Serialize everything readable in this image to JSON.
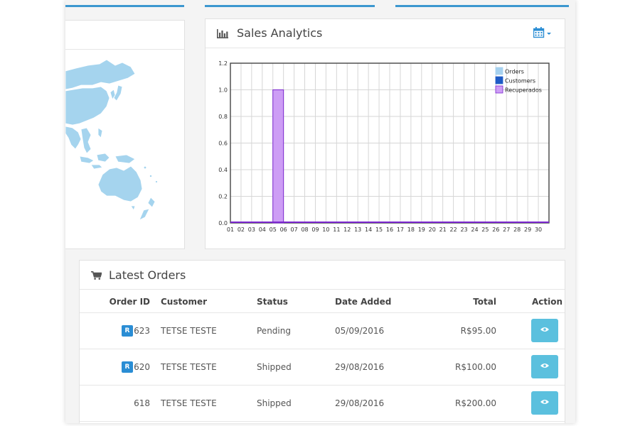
{
  "colors": {
    "accent": "#3c97cf",
    "map_land": "#a5d4ee",
    "bar_recuperados_fill": "#cd9df5",
    "bar_recuperados_stroke": "#7c27cf",
    "legend_orders": "#a6d1ef",
    "legend_customers": "#1e5bc6",
    "legend_recuperados": "#8a12f5",
    "badge": "#2a8dd4",
    "action_button": "#5bc0de"
  },
  "sales": {
    "title": "Sales Analytics",
    "icon": "bar-chart-icon",
    "date_picker_icon": "calendar-icon"
  },
  "chart_data": {
    "type": "bar",
    "categories": [
      "01",
      "02",
      "03",
      "04",
      "05",
      "06",
      "07",
      "08",
      "09",
      "10",
      "11",
      "12",
      "13",
      "14",
      "15",
      "16",
      "17",
      "18",
      "19",
      "20",
      "21",
      "22",
      "23",
      "24",
      "25",
      "26",
      "27",
      "28",
      "29",
      "30"
    ],
    "series": [
      {
        "name": "Orders",
        "values": [
          0,
          0,
          0,
          0,
          0,
          0,
          0,
          0,
          0,
          0,
          0,
          0,
          0,
          0,
          0,
          0,
          0,
          0,
          0,
          0,
          0,
          0,
          0,
          0,
          0,
          0,
          0,
          0,
          0,
          0
        ]
      },
      {
        "name": "Customers",
        "values": [
          0,
          0,
          0,
          0,
          0,
          0,
          0,
          0,
          0,
          0,
          0,
          0,
          0,
          0,
          0,
          0,
          0,
          0,
          0,
          0,
          0,
          0,
          0,
          0,
          0,
          0,
          0,
          0,
          0,
          0
        ]
      },
      {
        "name": "Recuperados",
        "values": [
          0,
          0,
          0,
          0,
          1,
          0,
          0,
          0,
          0,
          0,
          0,
          0,
          0,
          0,
          0,
          0,
          0,
          0,
          0,
          0,
          0,
          0,
          0,
          0,
          0,
          0,
          0,
          0,
          0,
          0
        ]
      }
    ],
    "y_ticks": [
      "0.0",
      "0.2",
      "0.4",
      "0.6",
      "0.8",
      "1.0",
      "1.2"
    ],
    "ylim": [
      0,
      1.2
    ],
    "grid": true,
    "legend_position": "top-right"
  },
  "orders": {
    "title": "Latest Orders",
    "icon": "cart-icon",
    "headers": {
      "order_id": "Order ID",
      "customer": "Customer",
      "status": "Status",
      "date_added": "Date Added",
      "total": "Total",
      "action": "Action"
    },
    "rows": [
      {
        "badge": "R",
        "id": "623",
        "customer": "TETSE TESTE",
        "status": "Pending",
        "date": "05/09/2016",
        "total": "R$95.00"
      },
      {
        "badge": "R",
        "id": "620",
        "customer": "TETSE TESTE",
        "status": "Shipped",
        "date": "29/08/2016",
        "total": "R$100.00"
      },
      {
        "badge": "",
        "id": "618",
        "customer": "TETSE TESTE",
        "status": "Shipped",
        "date": "29/08/2016",
        "total": "R$200.00"
      }
    ],
    "action_icon": "eye-icon"
  }
}
